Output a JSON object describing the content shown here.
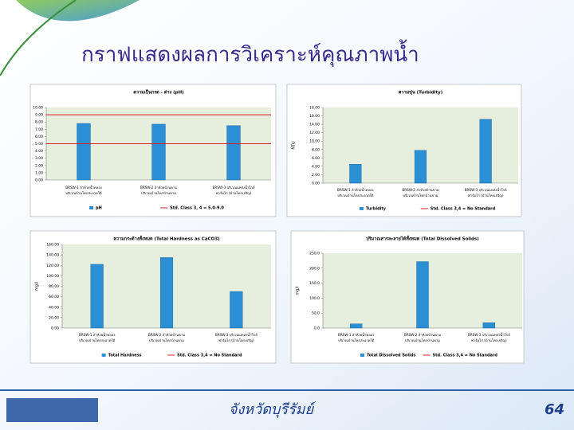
{
  "slide": {
    "title": "กราฟแสดงผลการวิเคราะห์คุณภาพน้ำ",
    "footer": "จังหวัดบุรีรัมย์",
    "page_number": "64"
  },
  "chart_data": [
    {
      "type": "bar",
      "title": "ความเป็นกรด - ด่าง (pH)",
      "categories": [
        [
          "BRSW-1 ลำห้วยน้ำคลอง",
          "บริเวณบ้านโคกสะอาดใต้"
        ],
        [
          "BRSW-2 ลำห้วยบ้านขาม",
          "บริเวณบ้านโคกบ้านขาม"
        ],
        [
          "BRSW-3 บริเวณแหล่งน้ำใกล้",
          "ฟาร์มไก่ (บ้านโคกเจริญ)"
        ]
      ],
      "series": [
        {
          "name": "pH",
          "color": "#2a8fd4",
          "values": [
            7.8,
            7.7,
            7.5
          ]
        }
      ],
      "reference": {
        "name": "Std. Class 3, 4 = 5.0-9.0",
        "color": "#d42020",
        "values": [
          5,
          9
        ]
      },
      "ylim": [
        0,
        10
      ],
      "yticks": [
        {
          "value": 0,
          "label": "0.00"
        },
        {
          "value": 1,
          "label": "1.00"
        },
        {
          "value": 2,
          "label": "2.00"
        },
        {
          "value": 3,
          "label": "3.00"
        },
        {
          "value": 4,
          "label": "4.00"
        },
        {
          "value": 5,
          "label": "5.00"
        },
        {
          "value": 6,
          "label": "6.00"
        },
        {
          "value": 7,
          "label": "7.00"
        },
        {
          "value": 8,
          "label": "8.00"
        },
        {
          "value": 9,
          "label": "9.00"
        },
        {
          "value": 10,
          "label": "10.00"
        }
      ]
    },
    {
      "type": "bar",
      "title": "ความขุ่น (Turbidity)",
      "y_label": "NTU",
      "categories": [
        [
          "BRSW-1 ลำห้วยน้ำคลอง",
          "บริเวณบ้านโคกสะอาดใต้"
        ],
        [
          "BRSW-2 ลำห้วยบ้านขาม",
          "บริเวณบ้านโคกบ้านขาม"
        ],
        [
          "BRSW-3 บริเวณแหล่งน้ำใกล้",
          "ฟาร์มไก่ (บ้านโคกเจริญ)"
        ]
      ],
      "series": [
        {
          "name": "Turbidity",
          "color": "#2a8fd4",
          "values": [
            4.5,
            7.8,
            15.2
          ]
        }
      ],
      "reference": {
        "name": "Std. Class 3,4 = No Standard",
        "color": "#d42020",
        "values": []
      },
      "ylim": [
        0,
        18
      ],
      "yticks": [
        {
          "value": 0,
          "label": "0.00"
        },
        {
          "value": 2,
          "label": "2.00"
        },
        {
          "value": 4,
          "label": "4.00"
        },
        {
          "value": 6,
          "label": "6.00"
        },
        {
          "value": 8,
          "label": "8.00"
        },
        {
          "value": 10,
          "label": "10.00"
        },
        {
          "value": 12,
          "label": "12.00"
        },
        {
          "value": 14,
          "label": "14.00"
        },
        {
          "value": 16,
          "label": "16.00"
        },
        {
          "value": 18,
          "label": "18.00"
        }
      ]
    },
    {
      "type": "bar",
      "title": "ความกระด้างทั้งหมด (Total Hardness as CaCO3)",
      "y_label": "mg/l",
      "categories": [
        [
          "BRSW-1 ลำห้วยน้ำคลอง",
          "บริเวณบ้านโคกสะอาดใต้"
        ],
        [
          "BRSW-2 ลำห้วยบ้านขาม",
          "บริเวณบ้านโคกบ้านขาม"
        ],
        [
          "BRSW-3 บริเวณแหล่งน้ำใกล้",
          "ฟาร์มไก่ (บ้านโคกเจริญ)"
        ]
      ],
      "series": [
        {
          "name": "Total Hardness",
          "color": "#2a8fd4",
          "values": [
            122,
            135,
            70
          ]
        }
      ],
      "reference": {
        "name": "Std. Class 3,4 = No Standard",
        "color": "#d42020",
        "values": []
      },
      "ylim": [
        0,
        160
      ],
      "yticks": [
        {
          "value": 0,
          "label": "0.00"
        },
        {
          "value": 20,
          "label": "20.00"
        },
        {
          "value": 40,
          "label": "40.00"
        },
        {
          "value": 60,
          "label": "60.00"
        },
        {
          "value": 80,
          "label": "80.00"
        },
        {
          "value": 100,
          "label": "100.00"
        },
        {
          "value": 120,
          "label": "120.00"
        },
        {
          "value": 140,
          "label": "140.00"
        },
        {
          "value": 160,
          "label": "160.00"
        }
      ]
    },
    {
      "type": "bar",
      "title": "ปริมาณสารละลายได้ทั้งหมด (Total Dissolved Solids)",
      "y_label": "mg/l",
      "categories": [
        [
          "BRSW-1 ลำห้วยน้ำคลอง",
          "บริเวณบ้านโคกสะอาดใต้"
        ],
        [
          "BRSW-2 ลำห้วยบ้านขาม",
          "บริเวณบ้านโคกบ้านขาม"
        ],
        [
          "BRSW-3 บริเวณแหล่งน้ำใกล้",
          "ฟาร์มไก่ (บ้านโคกเจริญ)"
        ]
      ],
      "series": [
        {
          "name": "Total Dissolved Solids",
          "color": "#2a8fd4",
          "values": [
            14,
            222,
            18
          ]
        }
      ],
      "reference": {
        "name": "Std. Class 3,4 = No Standard",
        "color": "#d42020",
        "values": []
      },
      "ylim": [
        0,
        250
      ],
      "yticks": [
        {
          "value": 0,
          "label": "0.0"
        },
        {
          "value": 50,
          "label": "50.0"
        },
        {
          "value": 100,
          "label": "100.0"
        },
        {
          "value": 150,
          "label": "150.0"
        },
        {
          "value": 200,
          "label": "200.0"
        },
        {
          "value": 250,
          "label": "250.0"
        }
      ]
    }
  ]
}
